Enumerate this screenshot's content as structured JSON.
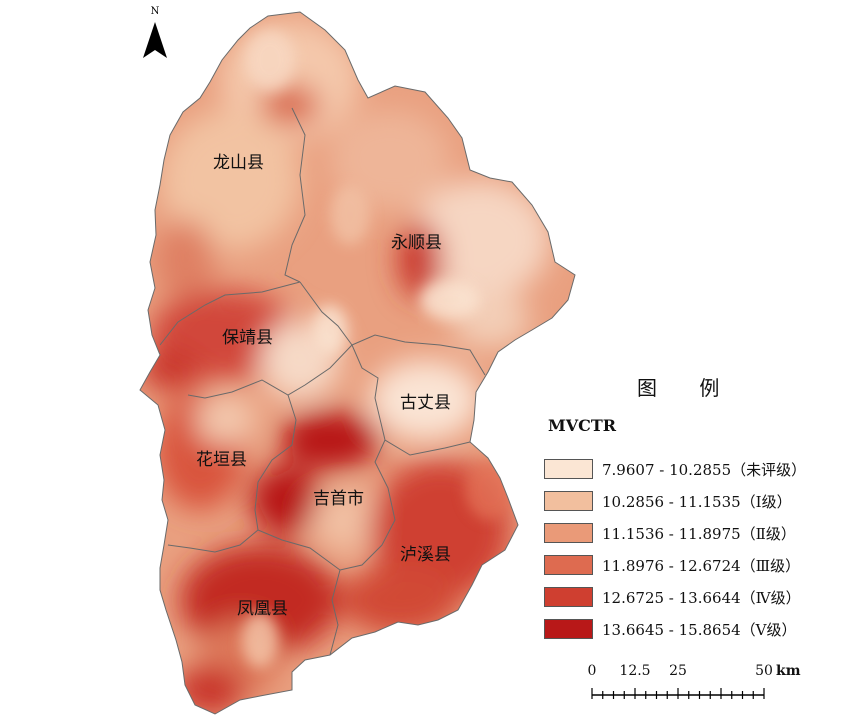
{
  "north_arrow": {
    "letter": "N",
    "icon": "north-arrow-icon"
  },
  "counties": [
    {
      "name": "龙山县",
      "id": "longshan"
    },
    {
      "name": "永顺县",
      "id": "yongshun"
    },
    {
      "name": "保靖县",
      "id": "baojing"
    },
    {
      "name": "古丈县",
      "id": "guzhang"
    },
    {
      "name": "花垣县",
      "id": "huayuan"
    },
    {
      "name": "吉首市",
      "id": "jishou"
    },
    {
      "name": "泸溪县",
      "id": "luxi"
    },
    {
      "name": "凤凰县",
      "id": "fenghuang"
    }
  ],
  "legend": {
    "title": "图 例",
    "field": "MVCTR",
    "classes": [
      {
        "label": "7.9607 - 10.2855（未评级）",
        "color": "#fbe6d4"
      },
      {
        "label": "10.2856 - 11.1535（Ⅰ级）",
        "color": "#f2bf9e"
      },
      {
        "label": "11.1536 - 11.8975（Ⅱ级）",
        "color": "#ea9a78"
      },
      {
        "label": "11.8976 - 12.6724（Ⅲ级）",
        "color": "#de6b50"
      },
      {
        "label": "12.6725 - 13.6644（Ⅳ级）",
        "color": "#cf3f30"
      },
      {
        "label": "13.6645 - 15.8654（Ⅴ级）",
        "color": "#b81818"
      }
    ]
  },
  "scale_bar": {
    "ticks": [
      "0",
      "12.5",
      "25",
      "50"
    ],
    "unit": "km"
  }
}
